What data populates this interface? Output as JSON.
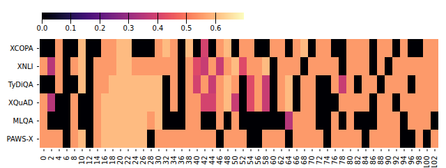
{
  "chart_data": {
    "type": "heatmap",
    "rows": [
      "XCOPA",
      "XNLI",
      "TyDiQA",
      "XQuAD",
      "MLQA",
      "PAWS-X"
    ],
    "categories": [
      "0",
      "2",
      "4",
      "6",
      "8",
      "10",
      "12",
      "14",
      "16",
      "18",
      "20",
      "22",
      "24",
      "26",
      "28",
      "30",
      "32",
      "34",
      "36",
      "38",
      "40",
      "42",
      "44",
      "46",
      "48",
      "50",
      "52",
      "54",
      "56",
      "58",
      "60",
      "62",
      "64",
      "66",
      "68",
      "70",
      "72",
      "74",
      "76",
      "78",
      "80",
      "82",
      "84",
      "86",
      "88",
      "90",
      "92",
      "94",
      "96",
      "98",
      "100",
      "102"
    ],
    "colorbar_range": [
      0.0,
      0.7
    ],
    "colorbar_ticks": [
      {
        "value": 0.0,
        "label": "0.0"
      },
      0.1,
      0.2,
      0.3,
      0.4,
      0.5,
      0.6
    ],
    "cells": [
      [
        0.0,
        0.0,
        0.55,
        0.0,
        0.0,
        0.6,
        0.0,
        0.0,
        0.55,
        0.55,
        0.6,
        0.6,
        0.0,
        0.0,
        0.0,
        0.55,
        0.6,
        0.55,
        0.0,
        0.6,
        0.0,
        0.4,
        0.0,
        0.55,
        0.6,
        0.0,
        0.55,
        0.55,
        0.0,
        0.0,
        0.55,
        0.55,
        0.0,
        0.55,
        0.6,
        0.0,
        0.55,
        0.55,
        0.0,
        0.0,
        0.55,
        0.55,
        0.55,
        0.0,
        0.55,
        0.55,
        0.0,
        0.55,
        0.0,
        0.0,
        0.55,
        0.55
      ],
      [
        0.55,
        0.35,
        0.55,
        0.0,
        0.55,
        0.6,
        0.0,
        0.55,
        0.55,
        0.55,
        0.6,
        0.6,
        0.55,
        0.55,
        0.55,
        0.55,
        0.55,
        0.55,
        0.0,
        0.55,
        0.42,
        0.38,
        0.55,
        0.38,
        0.55,
        0.6,
        0.42,
        0.55,
        0.55,
        0.6,
        0.0,
        0.55,
        0.55,
        0.55,
        0.0,
        0.55,
        0.55,
        0.55,
        0.55,
        0.0,
        0.55,
        0.55,
        0.55,
        0.0,
        0.55,
        0.0,
        0.55,
        0.55,
        0.55,
        0.55,
        0.55,
        0.55
      ],
      [
        0.0,
        0.0,
        0.55,
        0.0,
        0.0,
        0.6,
        0.0,
        0.55,
        0.55,
        0.6,
        0.6,
        0.6,
        0.6,
        0.6,
        0.6,
        0.6,
        0.0,
        0.55,
        0.0,
        0.55,
        0.4,
        0.55,
        0.38,
        0.55,
        0.6,
        0.55,
        0.0,
        0.42,
        0.55,
        0.38,
        0.0,
        0.55,
        0.6,
        0.0,
        0.55,
        0.55,
        0.0,
        0.0,
        0.55,
        0.38,
        0.55,
        0.0,
        0.55,
        0.55,
        0.0,
        0.55,
        0.55,
        0.55,
        0.0,
        0.55,
        0.55,
        0.55
      ],
      [
        0.55,
        0.35,
        0.0,
        0.0,
        0.55,
        0.0,
        0.0,
        0.55,
        0.6,
        0.6,
        0.6,
        0.6,
        0.6,
        0.6,
        0.6,
        0.6,
        0.0,
        0.55,
        0.0,
        0.55,
        0.55,
        0.4,
        0.4,
        0.55,
        0.6,
        0.38,
        0.0,
        0.42,
        0.55,
        0.38,
        0.0,
        0.55,
        0.6,
        0.0,
        0.55,
        0.55,
        0.0,
        0.0,
        0.0,
        0.55,
        0.55,
        0.55,
        0.55,
        0.0,
        0.55,
        0.55,
        0.0,
        0.55,
        0.55,
        0.55,
        0.55,
        0.55
      ],
      [
        0.55,
        0.0,
        0.0,
        0.0,
        0.55,
        0.0,
        0.0,
        0.55,
        0.6,
        0.6,
        0.6,
        0.6,
        0.6,
        0.6,
        0.55,
        0.6,
        0.0,
        0.0,
        0.0,
        0.55,
        0.55,
        0.0,
        0.0,
        0.55,
        0.0,
        0.55,
        0.0,
        0.0,
        0.0,
        0.0,
        0.0,
        0.0,
        0.35,
        0.55,
        0.55,
        0.55,
        0.0,
        0.0,
        0.55,
        0.0,
        0.55,
        0.0,
        0.0,
        0.0,
        0.55,
        0.55,
        0.55,
        0.0,
        0.55,
        0.55,
        0.55,
        0.0
      ],
      [
        0.55,
        0.55,
        0.55,
        0.0,
        0.55,
        0.6,
        0.0,
        0.55,
        0.6,
        0.6,
        0.6,
        0.6,
        0.6,
        0.6,
        0.0,
        0.55,
        0.55,
        0.55,
        0.55,
        0.55,
        0.55,
        0.55,
        0.55,
        0.0,
        0.55,
        0.55,
        0.55,
        0.0,
        0.0,
        0.55,
        0.55,
        0.55,
        0.0,
        0.55,
        0.55,
        0.55,
        0.55,
        0.0,
        0.55,
        0.55,
        0.55,
        0.55,
        0.0,
        0.55,
        0.55,
        0.55,
        0.55,
        0.0,
        0.0,
        0.55,
        0.0,
        0.55
      ]
    ]
  }
}
